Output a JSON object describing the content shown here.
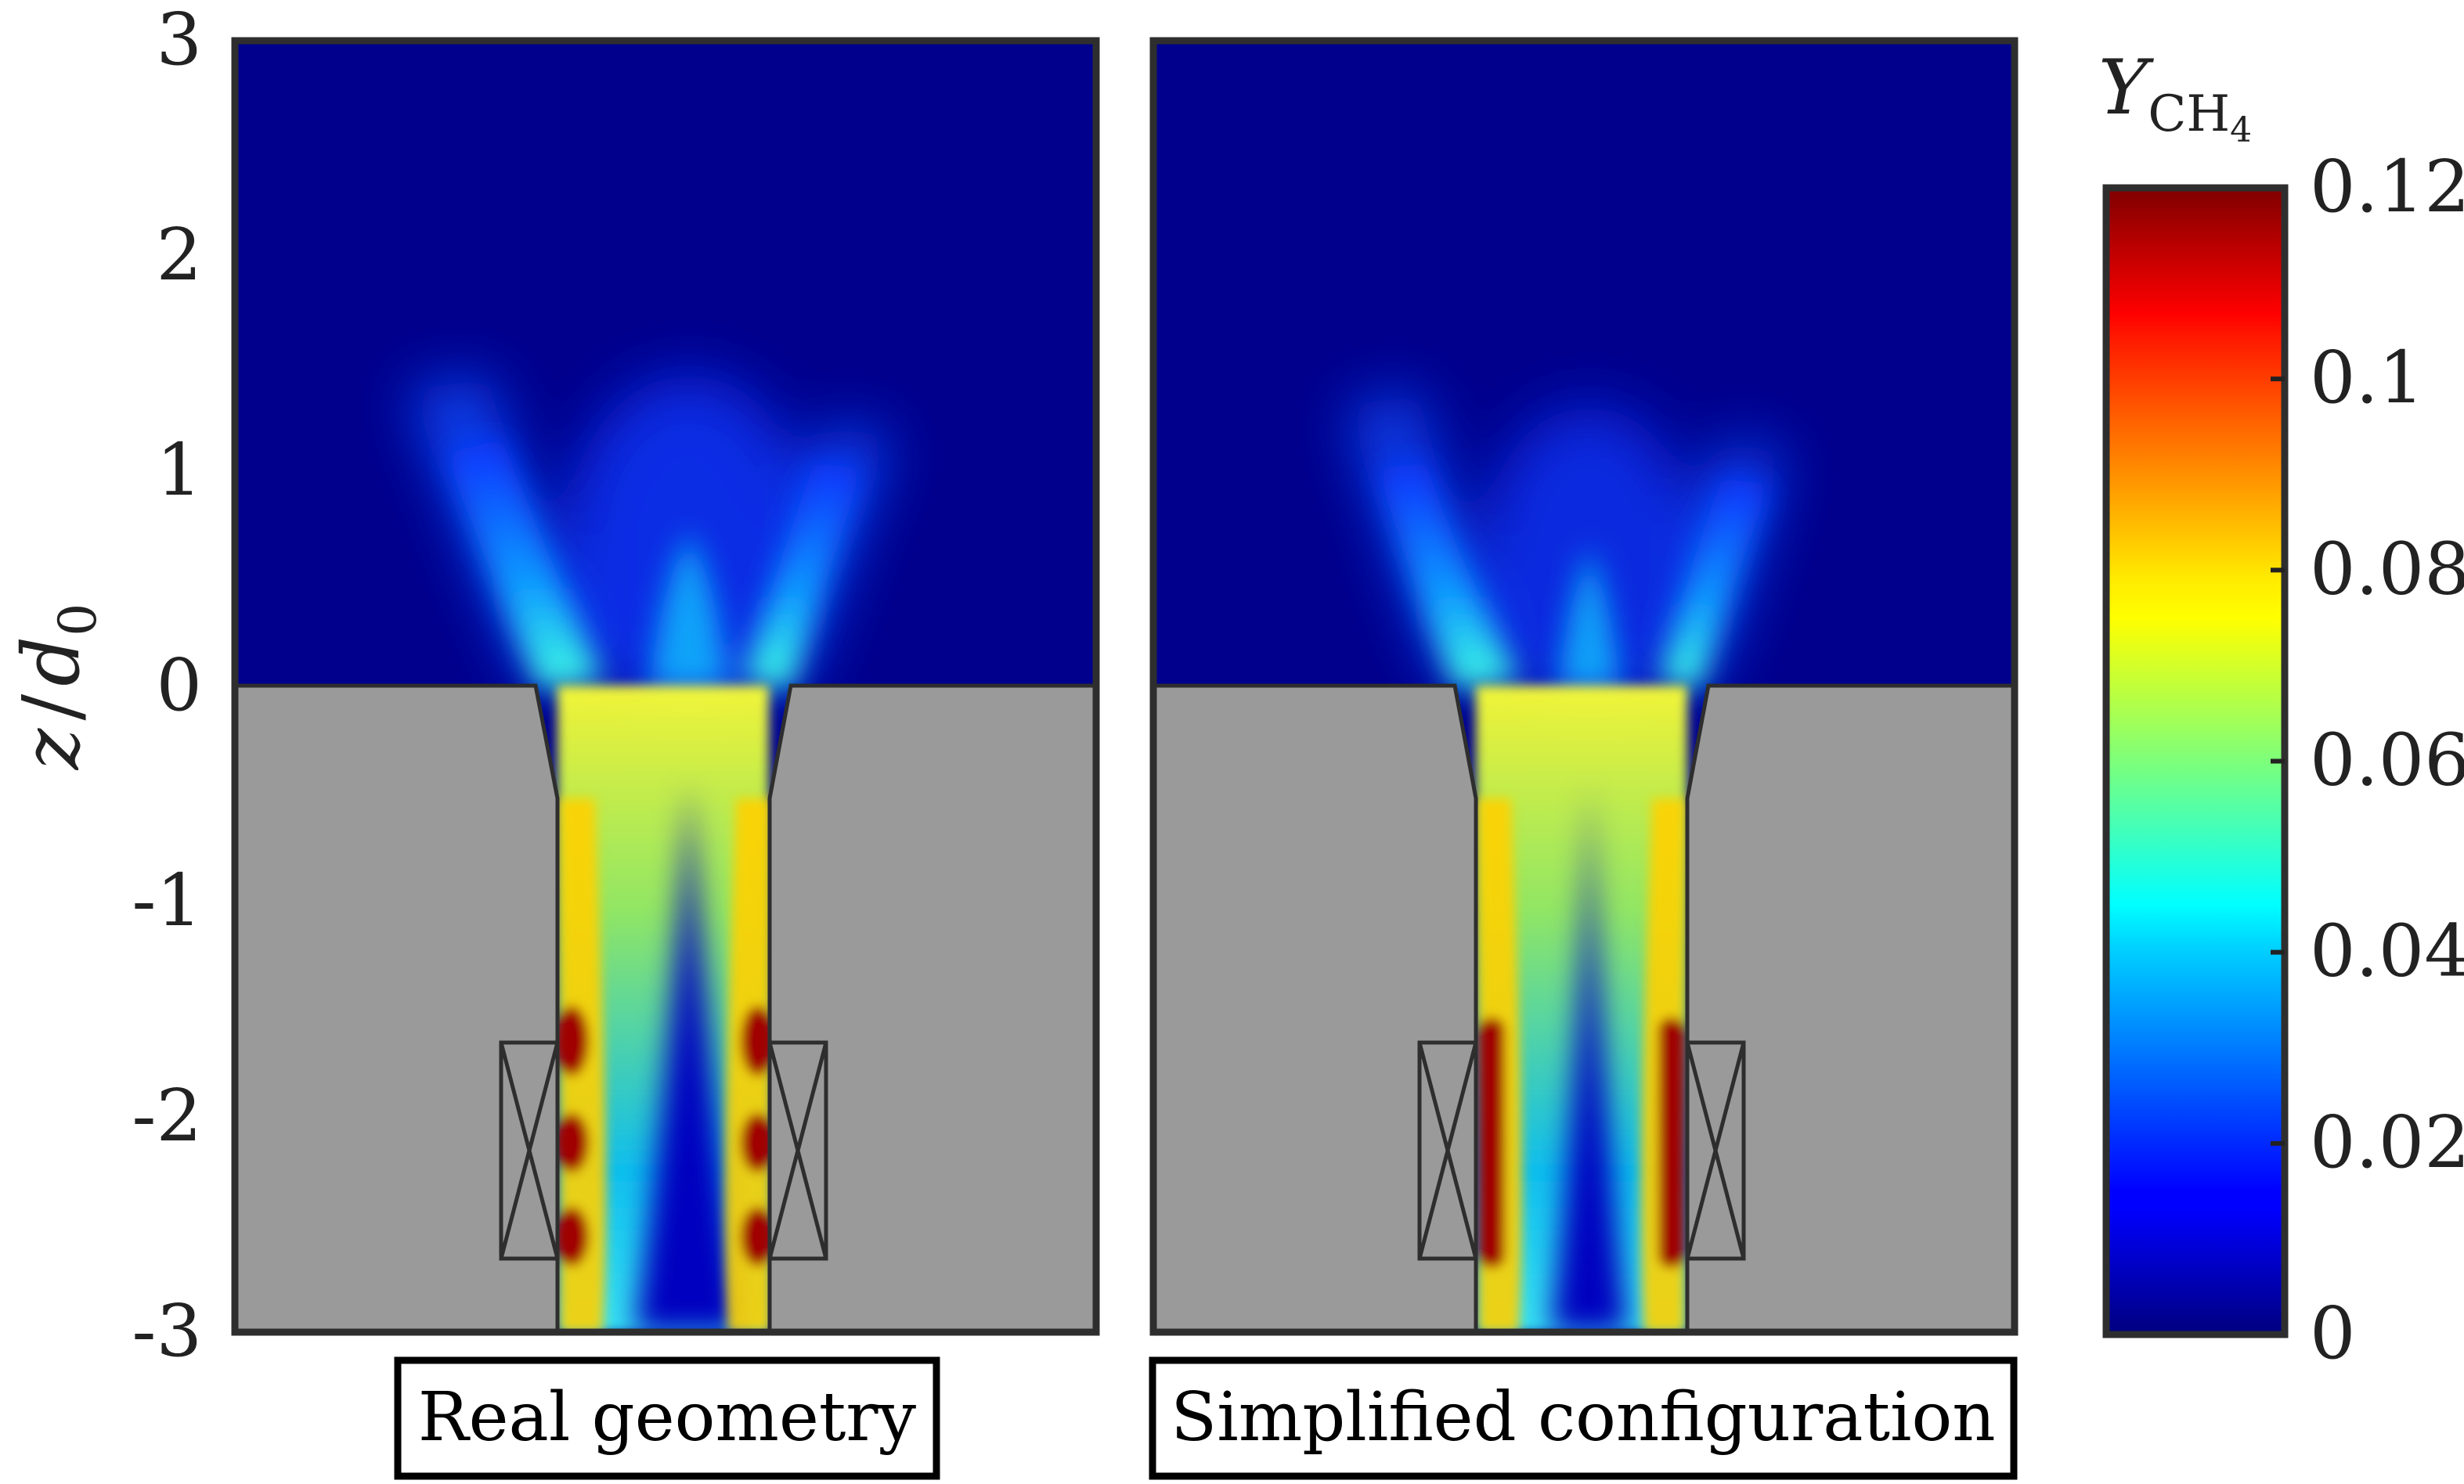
{
  "chart_data": {
    "type": "heatmap",
    "yaxis": {
      "label_var": "z",
      "label_den": "d",
      "label_den_sub": "0",
      "ticks": [
        "3",
        "2",
        "1",
        "0",
        "-1",
        "-2",
        "-3"
      ],
      "range": [
        -3,
        3
      ]
    },
    "panels": [
      {
        "title": "Real geometry",
        "swirler_hotspots": "discrete"
      },
      {
        "title": "Simplified configuration",
        "swirler_hotspots": "continuous"
      }
    ],
    "colorbar": {
      "label_base": "Y",
      "label_sub": "CH",
      "label_sub2": "4",
      "ticks": [
        "0",
        "0.02",
        "0.04",
        "0.06",
        "0.08",
        "0.1",
        "0.12"
      ],
      "range": [
        0,
        0.12
      ],
      "colormap": "jet"
    },
    "colors": {
      "background": "#00008c",
      "wall": "#9a9a9a",
      "frame": "#2e2e2e",
      "jet_hot": "#7f0000",
      "jet_cold": "#00007f"
    }
  }
}
